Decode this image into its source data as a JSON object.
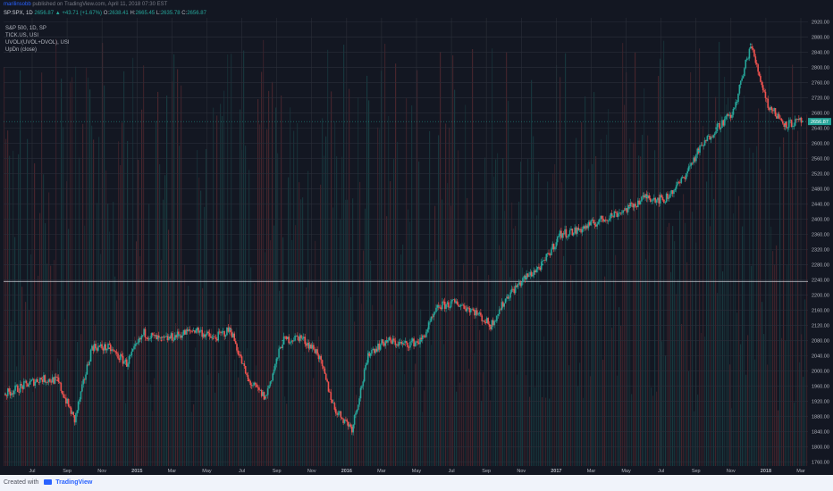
{
  "header": {
    "author": "marilinsobb",
    "published_text": "published on TradingView.com, April 11, 2018 07:30 EST",
    "symbol_line": {
      "symbol": "SP:SPX, 1D",
      "last": "2656.87",
      "change": "+43.71 (+1.67%)",
      "open_label": "O:",
      "open": "2638.41",
      "high_label": "H:",
      "high": "2665.45",
      "low_label": "L:",
      "low": "2635.78",
      "close_label": "C:",
      "close": "2656.87"
    }
  },
  "legend": [
    "S&P 500, 1D, SP",
    "TICK.US, USI",
    "UVOL/(UVOL+DVOL), USI",
    "UpDn (close)"
  ],
  "footer": {
    "created_with": "Created with",
    "brand": "TradingView"
  },
  "colors": {
    "background": "#131722",
    "up": "#26a69a",
    "down": "#ef5350",
    "grid": "#2a2e39",
    "axis_text": "#b2b5be"
  },
  "chart_data": {
    "type": "line",
    "title": "S&P 500, 1D, SP",
    "xlabel": "",
    "ylabel": "",
    "x_ticks": [
      "Jul",
      "Sep",
      "Nov",
      "2015",
      "Mar",
      "May",
      "Jul",
      "Sep",
      "Nov",
      "2016",
      "Mar",
      "May",
      "Jul",
      "Sep",
      "Nov",
      "2017",
      "Mar",
      "May",
      "Jul",
      "Sep",
      "Nov",
      "2018",
      "Mar"
    ],
    "y_ticks": [
      1760,
      1800,
      1840,
      1880,
      1920,
      1960,
      2000,
      2040,
      2080,
      2120,
      2160,
      2200,
      2240,
      2280,
      2320,
      2360,
      2400,
      2440,
      2480,
      2520,
      2560,
      2600,
      2640,
      2680,
      2720,
      2760,
      2800,
      2840,
      2880,
      2920
    ],
    "ylim": [
      1750,
      2930
    ],
    "last_price_label": "2656.87",
    "reference_line": 2236,
    "grid": true,
    "series": [
      {
        "x": [
          "2014-06",
          "2014-07",
          "2014-08",
          "2014-09",
          "2014-10",
          "2014-11",
          "2014-12",
          "2015-01",
          "2015-02",
          "2015-03",
          "2015-04",
          "2015-05",
          "2015-06",
          "2015-07",
          "2015-08",
          "2015-09",
          "2015-10",
          "2015-11",
          "2015-12",
          "2016-01",
          "2016-02",
          "2016-03",
          "2016-04",
          "2016-05",
          "2016-06",
          "2016-07",
          "2016-08",
          "2016-09",
          "2016-10",
          "2016-11",
          "2016-12",
          "2017-01",
          "2017-02",
          "2017-03",
          "2017-04",
          "2017-05",
          "2017-06",
          "2017-07",
          "2017-08",
          "2017-09",
          "2017-10",
          "2017-11",
          "2017-12",
          "2018-01",
          "2018-02",
          "2018-03",
          "2018-04"
        ],
        "values": [
          1940,
          1960,
          1980,
          1975,
          1870,
          2065,
          2060,
          2020,
          2100,
          2080,
          2095,
          2110,
          2085,
          2110,
          1975,
          1930,
          2080,
          2090,
          2050,
          1900,
          1850,
          2050,
          2080,
          2070,
          2080,
          2170,
          2180,
          2160,
          2120,
          2200,
          2245,
          2280,
          2360,
          2370,
          2390,
          2410,
          2430,
          2460,
          2450,
          2500,
          2580,
          2640,
          2680,
          2860,
          2700,
          2650,
          2657
        ]
      }
    ]
  }
}
